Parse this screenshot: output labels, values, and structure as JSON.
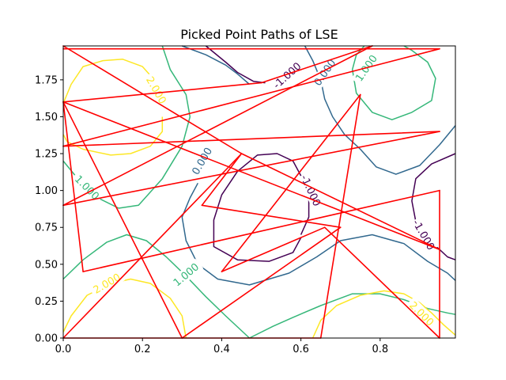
{
  "chart_data": {
    "type": "line",
    "title": "Picked Point Paths of LSE",
    "xlabel": "",
    "ylabel": "",
    "xlim": [
      0,
      0.99
    ],
    "ylim": [
      0,
      1.98
    ],
    "grid": false,
    "xticks": [
      0.0,
      0.2,
      0.4,
      0.6,
      0.8
    ],
    "xtick_labels": [
      "0.0",
      "0.2",
      "0.4",
      "0.6",
      "0.8"
    ],
    "yticks": [
      0.0,
      0.25,
      0.5,
      0.75,
      1.0,
      1.25,
      1.5,
      1.75
    ],
    "ytick_labels": [
      "0.00",
      "0.25",
      "0.50",
      "0.75",
      "1.00",
      "1.25",
      "1.50",
      "1.75"
    ],
    "contours": [
      {
        "level": "-1.000",
        "color": "#440154",
        "paths": [
          [
            [
              0.36,
              1.98
            ],
            [
              0.41,
              1.87
            ],
            [
              0.44,
              1.8
            ],
            [
              0.48,
              1.74
            ],
            [
              0.51,
              1.73
            ]
          ],
          [
            [
              0.6,
              0.68
            ],
            [
              0.58,
              0.58
            ],
            [
              0.52,
              0.52
            ],
            [
              0.44,
              0.53
            ],
            [
              0.38,
              0.62
            ],
            [
              0.38,
              0.8
            ],
            [
              0.4,
              0.97
            ],
            [
              0.44,
              1.13
            ],
            [
              0.49,
              1.24
            ],
            [
              0.54,
              1.25
            ],
            [
              0.58,
              1.2
            ],
            [
              0.6,
              1.1
            ],
            [
              0.62,
              0.95
            ],
            [
              0.62,
              0.82
            ],
            [
              0.6,
              0.7
            ]
          ],
          [
            [
              0.99,
              1.25
            ],
            [
              0.93,
              1.18
            ],
            [
              0.89,
              1.08
            ],
            [
              0.88,
              0.93
            ],
            [
              0.89,
              0.79
            ],
            [
              0.92,
              0.67
            ],
            [
              0.95,
              0.6
            ],
            [
              0.97,
              0.55
            ],
            [
              0.99,
              0.53
            ]
          ]
        ],
        "labels": [
          {
            "text": "-1.000",
            "x": 0.565,
            "y": 1.78,
            "angle": -42
          },
          {
            "text": "-1.000",
            "x": 0.625,
            "y": 1.0,
            "angle": 65
          },
          {
            "text": "-1.000",
            "x": 0.91,
            "y": 0.7,
            "angle": 60
          }
        ]
      },
      {
        "level": "0.000",
        "color": "#31688e",
        "paths": [
          [
            [
              0.3,
              1.98
            ],
            [
              0.36,
              1.92
            ],
            [
              0.41,
              1.85
            ],
            [
              0.44,
              1.79
            ],
            [
              0.47,
              1.72
            ]
          ],
          [
            [
              0.61,
              1.98
            ],
            [
              0.63,
              1.88
            ],
            [
              0.65,
              1.75
            ],
            [
              0.66,
              1.62
            ],
            [
              0.68,
              1.5
            ],
            [
              0.71,
              1.38
            ],
            [
              0.75,
              1.28
            ],
            [
              0.79,
              1.16
            ],
            [
              0.84,
              1.11
            ],
            [
              0.9,
              1.17
            ],
            [
              0.95,
              1.31
            ],
            [
              0.99,
              1.44
            ]
          ],
          [
            [
              0.34,
              1.05
            ],
            [
              0.32,
              0.95
            ],
            [
              0.3,
              0.82
            ],
            [
              0.31,
              0.66
            ],
            [
              0.34,
              0.5
            ],
            [
              0.39,
              0.4
            ],
            [
              0.47,
              0.36
            ],
            [
              0.57,
              0.44
            ],
            [
              0.64,
              0.55
            ],
            [
              0.7,
              0.66
            ],
            [
              0.78,
              0.7
            ],
            [
              0.86,
              0.64
            ],
            [
              0.92,
              0.52
            ],
            [
              0.97,
              0.44
            ],
            [
              0.99,
              0.39
            ]
          ]
        ],
        "labels": [
          {
            "text": "0.000",
            "x": 0.66,
            "y": 1.8,
            "angle": -55
          },
          {
            "text": "0.000",
            "x": 0.35,
            "y": 1.2,
            "angle": -60
          }
        ]
      },
      {
        "level": "1.000",
        "color": "#35b779",
        "paths": [
          [
            [
              0.0,
              1.2
            ],
            [
              0.04,
              1.07
            ],
            [
              0.08,
              0.96
            ],
            [
              0.14,
              0.88
            ],
            [
              0.19,
              0.9
            ],
            [
              0.25,
              1.08
            ],
            [
              0.3,
              1.3
            ],
            [
              0.32,
              1.5
            ],
            [
              0.31,
              1.65
            ],
            [
              0.27,
              1.82
            ],
            [
              0.25,
              1.98
            ]
          ],
          [
            [
              0.0,
              0.4
            ],
            [
              0.05,
              0.53
            ],
            [
              0.11,
              0.65
            ],
            [
              0.16,
              0.7
            ],
            [
              0.21,
              0.66
            ],
            [
              0.26,
              0.55
            ],
            [
              0.31,
              0.42
            ],
            [
              0.36,
              0.28
            ],
            [
              0.41,
              0.15
            ],
            [
              0.47,
              0.0
            ]
          ],
          [
            [
              0.47,
              0.0
            ],
            [
              0.53,
              0.08
            ],
            [
              0.58,
              0.14
            ],
            [
              0.65,
              0.22
            ],
            [
              0.73,
              0.3
            ],
            [
              0.8,
              0.3
            ],
            [
              0.86,
              0.26
            ],
            [
              0.92,
              0.2
            ],
            [
              0.97,
              0.17
            ],
            [
              0.99,
              0.16
            ]
          ],
          [
            [
              0.76,
              1.98
            ],
            [
              0.74,
              1.92
            ],
            [
              0.73,
              1.82
            ],
            [
              0.74,
              1.66
            ],
            [
              0.78,
              1.53
            ],
            [
              0.83,
              1.48
            ],
            [
              0.88,
              1.53
            ],
            [
              0.93,
              1.61
            ],
            [
              0.94,
              1.76
            ],
            [
              0.92,
              1.87
            ],
            [
              0.88,
              1.95
            ],
            [
              0.86,
              1.98
            ]
          ]
        ],
        "labels": [
          {
            "text": "1.000",
            "x": 0.06,
            "y": 1.02,
            "angle": 45
          },
          {
            "text": "1.000",
            "x": 0.31,
            "y": 0.43,
            "angle": -40
          },
          {
            "text": "1.000",
            "x": 0.765,
            "y": 1.83,
            "angle": -55
          }
        ]
      },
      {
        "level": "2.000",
        "color": "#fde725",
        "paths": [
          [
            [
              0.0,
              1.59
            ],
            [
              0.02,
              1.72
            ],
            [
              0.05,
              1.84
            ],
            [
              0.1,
              1.88
            ],
            [
              0.15,
              1.89
            ],
            [
              0.2,
              1.84
            ],
            [
              0.24,
              1.72
            ]
          ],
          [
            [
              0.25,
              1.5
            ],
            [
              0.25,
              1.4
            ],
            [
              0.22,
              1.3
            ],
            [
              0.17,
              1.25
            ],
            [
              0.12,
              1.24
            ],
            [
              0.05,
              1.28
            ],
            [
              0.01,
              1.33
            ],
            [
              0.0,
              1.38
            ]
          ],
          [
            [
              0.0,
              0.04
            ],
            [
              0.02,
              0.15
            ],
            [
              0.06,
              0.29
            ],
            [
              0.12,
              0.37
            ],
            [
              0.17,
              0.4
            ],
            [
              0.22,
              0.37
            ],
            [
              0.27,
              0.27
            ],
            [
              0.3,
              0.15
            ],
            [
              0.31,
              0.0
            ]
          ],
          [
            [
              0.63,
              0.0
            ],
            [
              0.65,
              0.12
            ],
            [
              0.69,
              0.22
            ],
            [
              0.75,
              0.29
            ],
            [
              0.81,
              0.32
            ],
            [
              0.86,
              0.3
            ],
            [
              0.9,
              0.24
            ],
            [
              0.93,
              0.17
            ],
            [
              0.96,
              0.09
            ],
            [
              0.99,
              0.02
            ]
          ]
        ],
        "labels": [
          {
            "text": "2.000",
            "x": 0.235,
            "y": 1.68,
            "angle": 60
          },
          {
            "text": "2.000",
            "x": 0.11,
            "y": 0.37,
            "angle": -30
          },
          {
            "text": "2.000",
            "x": 0.905,
            "y": 0.165,
            "angle": 45
          }
        ]
      }
    ],
    "path": {
      "color": "#ff0000",
      "points": [
        [
          0.0,
          1.96
        ],
        [
          0.95,
          1.96
        ],
        [
          0.0,
          1.3
        ],
        [
          0.95,
          1.4
        ],
        [
          0.0,
          0.9
        ],
        [
          0.78,
          1.98
        ],
        [
          0.5,
          1.73
        ],
        [
          0.0,
          1.6
        ],
        [
          0.3,
          0.0
        ],
        [
          0.7,
          0.75
        ],
        [
          0.35,
          0.9
        ],
        [
          0.45,
          1.25
        ],
        [
          0.95,
          0.6
        ],
        [
          0.0,
          1.6
        ],
        [
          0.05,
          0.45
        ],
        [
          0.95,
          1.0
        ],
        [
          0.95,
          0.0
        ],
        [
          0.66,
          0.75
        ],
        [
          0.4,
          0.45
        ],
        [
          0.75,
          1.65
        ],
        [
          0.65,
          0.0
        ],
        [
          0.0,
          0.0
        ],
        [
          0.45,
          1.25
        ],
        [
          0.0,
          1.98
        ]
      ]
    }
  }
}
